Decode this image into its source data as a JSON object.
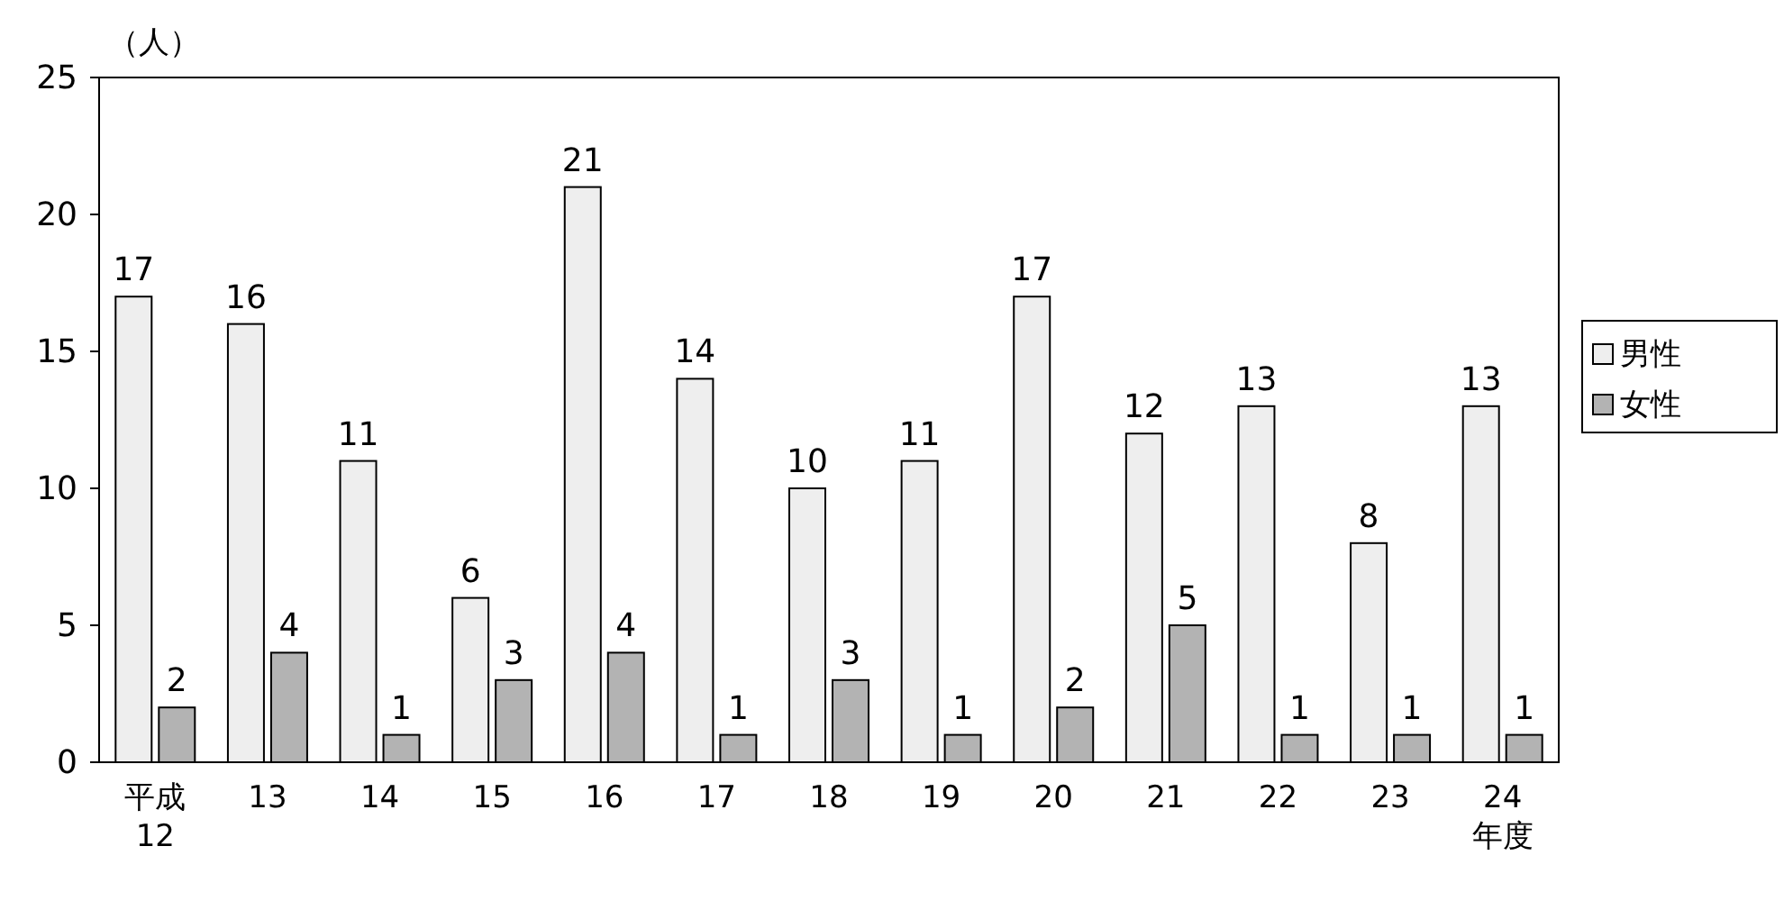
{
  "chart_data": {
    "type": "bar",
    "categories": [
      "平成12",
      "13",
      "14",
      "15",
      "16",
      "17",
      "18",
      "19",
      "20",
      "21",
      "22",
      "23",
      "24年度"
    ],
    "series": [
      {
        "name": "男性",
        "color": "#eeeeee",
        "values": [
          17,
          16,
          11,
          6,
          21,
          14,
          10,
          11,
          17,
          12,
          13,
          8,
          13
        ]
      },
      {
        "name": "女性",
        "color": "#b3b3b3",
        "values": [
          2,
          4,
          1,
          3,
          4,
          1,
          3,
          1,
          2,
          5,
          1,
          1,
          1
        ]
      }
    ],
    "ylim": [
      0,
      25
    ],
    "yticks": [
      0,
      5,
      10,
      15,
      20,
      25
    ],
    "data_labels": true,
    "legend": "right",
    "grid": false,
    "annotations": [
      "（人）"
    ]
  }
}
